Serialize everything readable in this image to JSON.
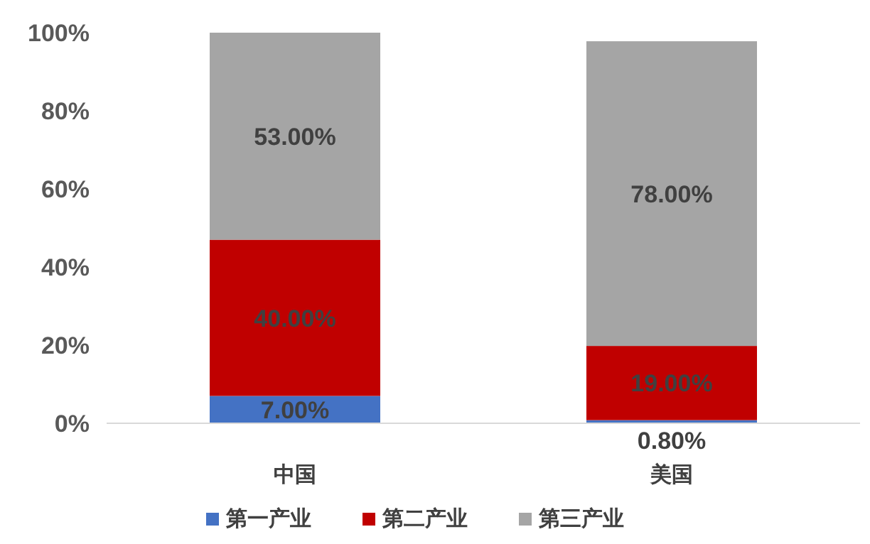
{
  "chart_data": {
    "type": "bar",
    "stacked": true,
    "categories": [
      "中国",
      "美国"
    ],
    "series": [
      {
        "name": "第一产业",
        "color": "#4472c4",
        "values": [
          7,
          0.8
        ],
        "value_labels": [
          "7.00%",
          "0.80%"
        ]
      },
      {
        "name": "第二产业",
        "color": "#c00000",
        "values": [
          40,
          19
        ],
        "value_labels": [
          "40.00%",
          "19.00%"
        ]
      },
      {
        "name": "第三产业",
        "color": "#a5a5a5",
        "values": [
          53,
          78
        ],
        "value_labels": [
          "53.00%",
          "78.00%"
        ]
      }
    ],
    "ylim": [
      0,
      100
    ],
    "yticks": [
      {
        "value": 0,
        "label": "0%"
      },
      {
        "value": 20,
        "label": "20%"
      },
      {
        "value": 40,
        "label": "40%"
      },
      {
        "value": 60,
        "label": "60%"
      },
      {
        "value": 80,
        "label": "80%"
      },
      {
        "value": 100,
        "label": "100%"
      }
    ],
    "grid": false,
    "legend": "bottom"
  }
}
